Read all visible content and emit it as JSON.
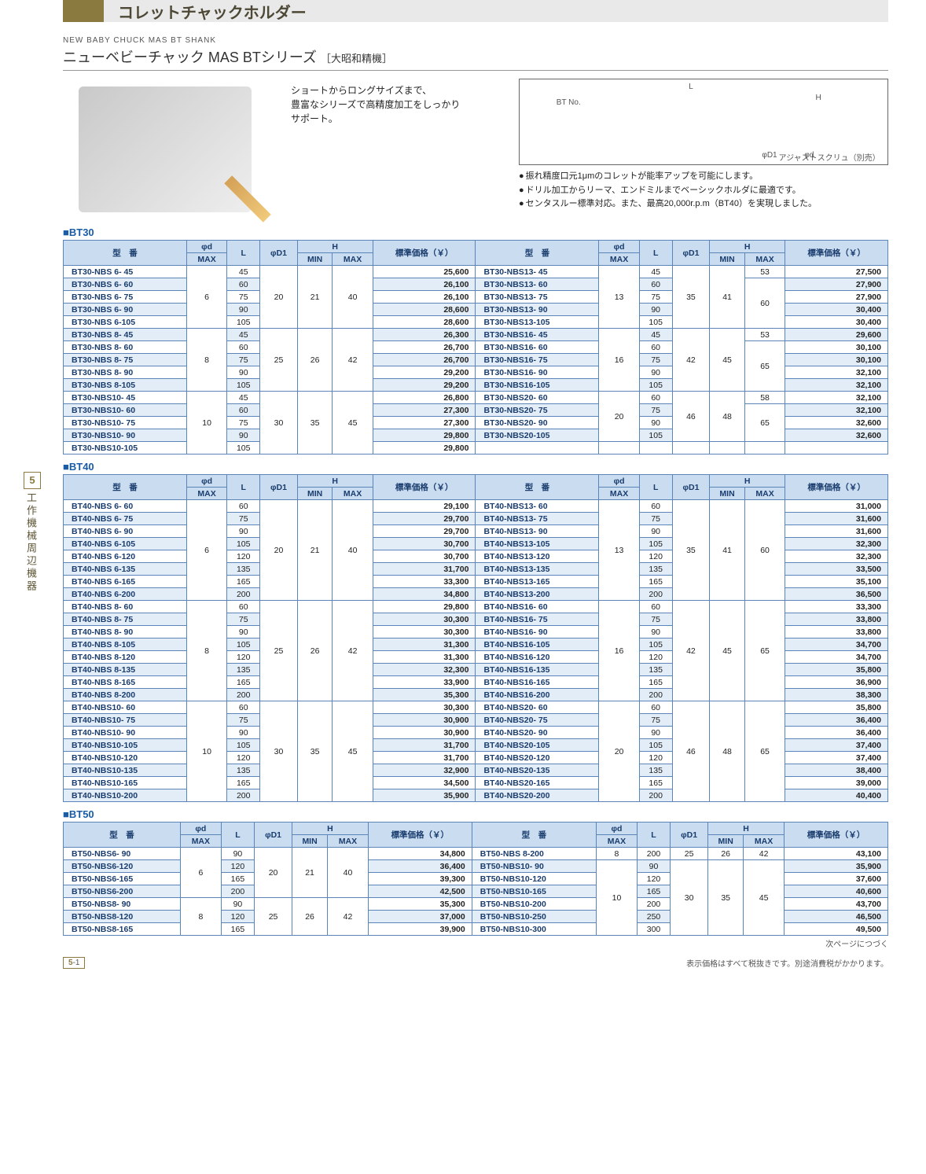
{
  "side_tab": {
    "num": "5",
    "label": "工作機械周辺機器"
  },
  "page_header": "コレットチャックホルダー",
  "eng_sub": "NEW BABY CHUCK MAS BT SHANK",
  "series_title_main": "ニューベビーチャック MAS BTシリーズ",
  "series_title_sub": "［大昭和精機］",
  "intro_text": "ショートからロングサイズまで、\n豊富なシリーズで高精度加工をしっかり\nサポート。",
  "diagram_labels": {
    "L": "L",
    "H": "H",
    "btno": "BT No.",
    "d1": "φD1",
    "d": "φd",
    "adj": "アジャストスクリュ（別売）"
  },
  "bullets": [
    "振れ精度口元1μmのコレットが能率アップを可能にします。",
    "ドリル加工からリーマ、エンドミルまでベーシックホルダに最適です。",
    "センタスルー標準対応。また、最高20,000r.p.m（BT40）を実現しました。"
  ],
  "table_headers": {
    "model": "型　番",
    "phid": "φd",
    "phid_sub": "MAX",
    "L": "L",
    "phiD1": "φD1",
    "H": "H",
    "H_min": "MIN",
    "H_max": "MAX",
    "price": "標準価格（￥）"
  },
  "colors": {
    "header_bg": "#c9dcf0",
    "border": "#5b85b8",
    "row_even": "#e2edf7",
    "row_odd": "#ffffff",
    "accent": "#1a5ca8",
    "band": "#8a7a3f"
  },
  "sections": [
    {
      "name": "BT30",
      "groups": [
        {
          "phid": "6",
          "D1": "20",
          "Hmin": "21",
          "Hmax": "40",
          "rows": [
            [
              "BT30-NBS 6-  45",
              "45",
              "25,600"
            ],
            [
              "BT30-NBS 6-  60",
              "60",
              "26,100"
            ],
            [
              "BT30-NBS 6-  75",
              "75",
              "26,100"
            ],
            [
              "BT30-NBS 6-  90",
              "90",
              "28,600"
            ],
            [
              "BT30-NBS 6-105",
              "105",
              "28,600"
            ]
          ]
        },
        {
          "phid": "8",
          "D1": "25",
          "Hmin": "26",
          "Hmax": "42",
          "rows": [
            [
              "BT30-NBS 8-  45",
              "45",
              "26,300"
            ],
            [
              "BT30-NBS 8-  60",
              "60",
              "26,700"
            ],
            [
              "BT30-NBS 8-  75",
              "75",
              "26,700"
            ],
            [
              "BT30-NBS 8-  90",
              "90",
              "29,200"
            ],
            [
              "BT30-NBS 8-105",
              "105",
              "29,200"
            ]
          ]
        },
        {
          "phid": "10",
          "D1": "30",
          "Hmin": "35",
          "Hmax": "45",
          "rows": [
            [
              "BT30-NBS10-  45",
              "45",
              "26,800"
            ],
            [
              "BT30-NBS10-  60",
              "60",
              "27,300"
            ],
            [
              "BT30-NBS10-  75",
              "75",
              "27,300"
            ],
            [
              "BT30-NBS10-  90",
              "90",
              "29,800"
            ],
            [
              "BT30-NBS10-105",
              "105",
              "29,800"
            ]
          ]
        }
      ],
      "groups_r": [
        {
          "phid": "13",
          "D1": "35",
          "Hmin": "41",
          "rows": [
            [
              "BT30-NBS13-  45",
              "45",
              "53",
              "27,500"
            ],
            [
              "BT30-NBS13-  60",
              "60",
              "",
              "27,900"
            ],
            [
              "BT30-NBS13-  75",
              "75",
              "60",
              "27,900"
            ],
            [
              "BT30-NBS13-  90",
              "90",
              "",
              "30,400"
            ],
            [
              "BT30-NBS13-105",
              "105",
              "",
              "30,400"
            ]
          ],
          "hmax_spans": [
            [
              "53",
              1
            ],
            [
              "60",
              4
            ]
          ]
        },
        {
          "phid": "16",
          "D1": "42",
          "Hmin": "45",
          "rows": [
            [
              "BT30-NBS16-  45",
              "45",
              "53",
              "29,600"
            ],
            [
              "BT30-NBS16-  60",
              "60",
              "",
              "30,100"
            ],
            [
              "BT30-NBS16-  75",
              "75",
              "65",
              "30,100"
            ],
            [
              "BT30-NBS16-  90",
              "90",
              "",
              "32,100"
            ],
            [
              "BT30-NBS16-105",
              "105",
              "",
              "32,100"
            ]
          ],
          "hmax_spans": [
            [
              "53",
              1
            ],
            [
              "65",
              4
            ]
          ]
        },
        {
          "phid": "20",
          "D1": "46",
          "Hmin": "48",
          "rows": [
            [
              "BT30-NBS20-  60",
              "60",
              "58",
              "32,100"
            ],
            [
              "BT30-NBS20-  75",
              "75",
              "",
              "32,100"
            ],
            [
              "BT30-NBS20-  90",
              "90",
              "65",
              "32,600"
            ],
            [
              "BT30-NBS20-105",
              "105",
              "",
              "32,600"
            ]
          ],
          "hmax_spans": [
            [
              "58",
              1
            ],
            [
              "65",
              3
            ]
          ]
        }
      ]
    },
    {
      "name": "BT40",
      "groups": [
        {
          "phid": "6",
          "D1": "20",
          "Hmin": "21",
          "Hmax": "40",
          "rows": [
            [
              "BT40-NBS 6-  60",
              "60",
              "29,100"
            ],
            [
              "BT40-NBS 6-  75",
              "75",
              "29,700"
            ],
            [
              "BT40-NBS 6-  90",
              "90",
              "29,700"
            ],
            [
              "BT40-NBS 6-105",
              "105",
              "30,700"
            ],
            [
              "BT40-NBS 6-120",
              "120",
              "30,700"
            ],
            [
              "BT40-NBS 6-135",
              "135",
              "31,700"
            ],
            [
              "BT40-NBS 6-165",
              "165",
              "33,300"
            ],
            [
              "BT40-NBS 6-200",
              "200",
              "34,800"
            ]
          ]
        },
        {
          "phid": "8",
          "D1": "25",
          "Hmin": "26",
          "Hmax": "42",
          "rows": [
            [
              "BT40-NBS 8-  60",
              "60",
              "29,800"
            ],
            [
              "BT40-NBS 8-  75",
              "75",
              "30,300"
            ],
            [
              "BT40-NBS 8-  90",
              "90",
              "30,300"
            ],
            [
              "BT40-NBS 8-105",
              "105",
              "31,300"
            ],
            [
              "BT40-NBS 8-120",
              "120",
              "31,300"
            ],
            [
              "BT40-NBS 8-135",
              "135",
              "32,300"
            ],
            [
              "BT40-NBS 8-165",
              "165",
              "33,900"
            ],
            [
              "BT40-NBS 8-200",
              "200",
              "35,300"
            ]
          ]
        },
        {
          "phid": "10",
          "D1": "30",
          "Hmin": "35",
          "Hmax": "45",
          "rows": [
            [
              "BT40-NBS10-  60",
              "60",
              "30,300"
            ],
            [
              "BT40-NBS10-  75",
              "75",
              "30,900"
            ],
            [
              "BT40-NBS10-  90",
              "90",
              "30,900"
            ],
            [
              "BT40-NBS10-105",
              "105",
              "31,700"
            ],
            [
              "BT40-NBS10-120",
              "120",
              "31,700"
            ],
            [
              "BT40-NBS10-135",
              "135",
              "32,900"
            ],
            [
              "BT40-NBS10-165",
              "165",
              "34,500"
            ],
            [
              "BT40-NBS10-200",
              "200",
              "35,900"
            ]
          ]
        }
      ],
      "groups_r": [
        {
          "phid": "13",
          "D1": "35",
          "Hmin": "41",
          "Hmax": "60",
          "rows": [
            [
              "BT40-NBS13-  60",
              "60",
              "31,000"
            ],
            [
              "BT40-NBS13-  75",
              "75",
              "31,600"
            ],
            [
              "BT40-NBS13-  90",
              "90",
              "31,600"
            ],
            [
              "BT40-NBS13-105",
              "105",
              "32,300"
            ],
            [
              "BT40-NBS13-120",
              "120",
              "32,300"
            ],
            [
              "BT40-NBS13-135",
              "135",
              "33,500"
            ],
            [
              "BT40-NBS13-165",
              "165",
              "35,100"
            ],
            [
              "BT40-NBS13-200",
              "200",
              "36,500"
            ]
          ]
        },
        {
          "phid": "16",
          "D1": "42",
          "Hmin": "45",
          "Hmax": "65",
          "rows": [
            [
              "BT40-NBS16-  60",
              "60",
              "33,300"
            ],
            [
              "BT40-NBS16-  75",
              "75",
              "33,800"
            ],
            [
              "BT40-NBS16-  90",
              "90",
              "33,800"
            ],
            [
              "BT40-NBS16-105",
              "105",
              "34,700"
            ],
            [
              "BT40-NBS16-120",
              "120",
              "34,700"
            ],
            [
              "BT40-NBS16-135",
              "135",
              "35,800"
            ],
            [
              "BT40-NBS16-165",
              "165",
              "36,900"
            ],
            [
              "BT40-NBS16-200",
              "200",
              "38,300"
            ]
          ]
        },
        {
          "phid": "20",
          "D1": "46",
          "Hmin": "48",
          "Hmax": "65",
          "rows": [
            [
              "BT40-NBS20-  60",
              "60",
              "35,800"
            ],
            [
              "BT40-NBS20-  75",
              "75",
              "36,400"
            ],
            [
              "BT40-NBS20-  90",
              "90",
              "36,400"
            ],
            [
              "BT40-NBS20-105",
              "105",
              "37,400"
            ],
            [
              "BT40-NBS20-120",
              "120",
              "37,400"
            ],
            [
              "BT40-NBS20-135",
              "135",
              "38,400"
            ],
            [
              "BT40-NBS20-165",
              "165",
              "39,000"
            ],
            [
              "BT40-NBS20-200",
              "200",
              "40,400"
            ]
          ]
        }
      ]
    },
    {
      "name": "BT50",
      "groups": [
        {
          "phid": "6",
          "D1": "20",
          "Hmin": "21",
          "Hmax": "40",
          "rows": [
            [
              "BT50-NBS6-  90",
              "90",
              "34,800"
            ],
            [
              "BT50-NBS6-120",
              "120",
              "36,400"
            ],
            [
              "BT50-NBS6-165",
              "165",
              "39,300"
            ],
            [
              "BT50-NBS6-200",
              "200",
              "42,500"
            ]
          ]
        },
        {
          "phid": "8",
          "D1": "25",
          "Hmin": "26",
          "Hmax": "42",
          "rows": [
            [
              "BT50-NBS8-  90",
              "90",
              "35,300"
            ],
            [
              "BT50-NBS8-120",
              "120",
              "37,000"
            ],
            [
              "BT50-NBS8-165",
              "165",
              "39,900"
            ]
          ]
        }
      ],
      "groups_r": [
        {
          "phid": "8",
          "D1": "25",
          "Hmin": "26",
          "Hmax": "42",
          "rows": [
            [
              "BT50-NBS 8-200",
              "200",
              "43,100"
            ]
          ]
        },
        {
          "phid": "10",
          "D1": "30",
          "Hmin": "35",
          "Hmax": "45",
          "rows": [
            [
              "BT50-NBS10-  90",
              "90",
              "35,900"
            ],
            [
              "BT50-NBS10-120",
              "120",
              "37,600"
            ],
            [
              "BT50-NBS10-165",
              "165",
              "40,600"
            ],
            [
              "BT50-NBS10-200",
              "200",
              "43,700"
            ],
            [
              "BT50-NBS10-250",
              "250",
              "46,500"
            ],
            [
              "BT50-NBS10-300",
              "300",
              "49,500"
            ]
          ]
        }
      ]
    }
  ],
  "next_page": "次ページにつづく",
  "footer_note": "表示価格はすべて税抜きです。別途消費税がかかります。",
  "footer_page": "5-1"
}
